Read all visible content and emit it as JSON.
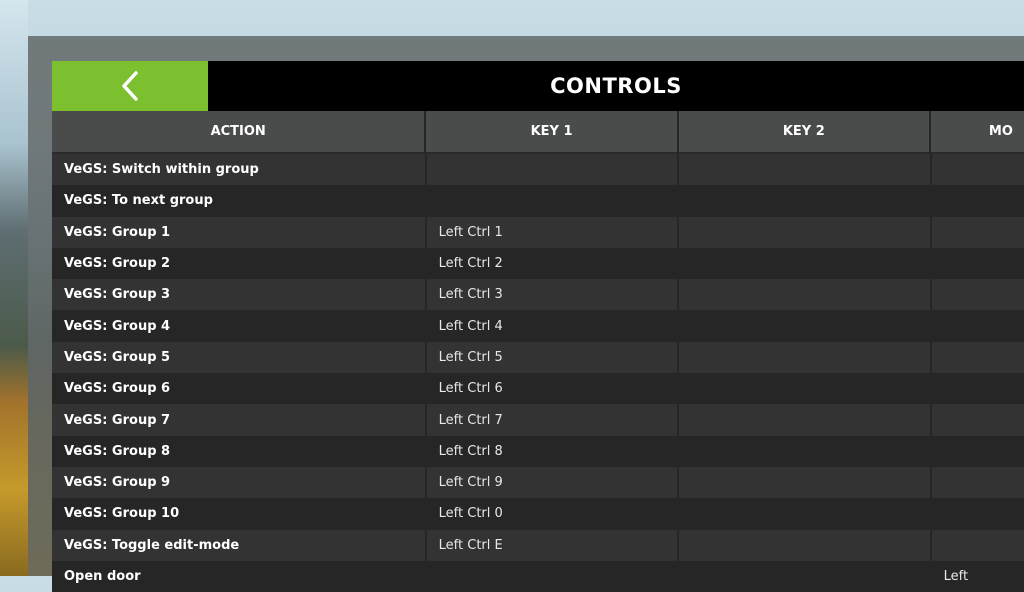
{
  "header": {
    "title": "CONTROLS",
    "back_icon": "chevron-left-icon",
    "accent": "#7cbf2f"
  },
  "columns": [
    "ACTION",
    "KEY 1",
    "KEY 2",
    "MO"
  ],
  "rows": [
    {
      "action": "VeGS: Switch within group",
      "key1": "",
      "key2": "",
      "mouse": ""
    },
    {
      "action": "VeGS: To next group",
      "key1": "",
      "key2": "",
      "mouse": ""
    },
    {
      "action": "VeGS: Group 1",
      "key1": "Left Ctrl 1",
      "key2": "",
      "mouse": ""
    },
    {
      "action": "VeGS: Group 2",
      "key1": "Left Ctrl 2",
      "key2": "",
      "mouse": ""
    },
    {
      "action": "VeGS: Group 3",
      "key1": "Left Ctrl 3",
      "key2": "",
      "mouse": ""
    },
    {
      "action": "VeGS: Group 4",
      "key1": "Left Ctrl 4",
      "key2": "",
      "mouse": ""
    },
    {
      "action": "VeGS: Group 5",
      "key1": "Left Ctrl 5",
      "key2": "",
      "mouse": ""
    },
    {
      "action": "VeGS: Group 6",
      "key1": "Left Ctrl 6",
      "key2": "",
      "mouse": ""
    },
    {
      "action": "VeGS: Group 7",
      "key1": "Left Ctrl 7",
      "key2": "",
      "mouse": ""
    },
    {
      "action": "VeGS: Group 8",
      "key1": "Left Ctrl 8",
      "key2": "",
      "mouse": ""
    },
    {
      "action": "VeGS: Group 9",
      "key1": "Left Ctrl 9",
      "key2": "",
      "mouse": ""
    },
    {
      "action": "VeGS: Group 10",
      "key1": "Left Ctrl 0",
      "key2": "",
      "mouse": ""
    },
    {
      "action": "VeGS: Toggle edit-mode",
      "key1": "Left Ctrl E",
      "key2": "",
      "mouse": ""
    },
    {
      "action": "Open door",
      "key1": "",
      "key2": "",
      "mouse": "Left"
    }
  ]
}
